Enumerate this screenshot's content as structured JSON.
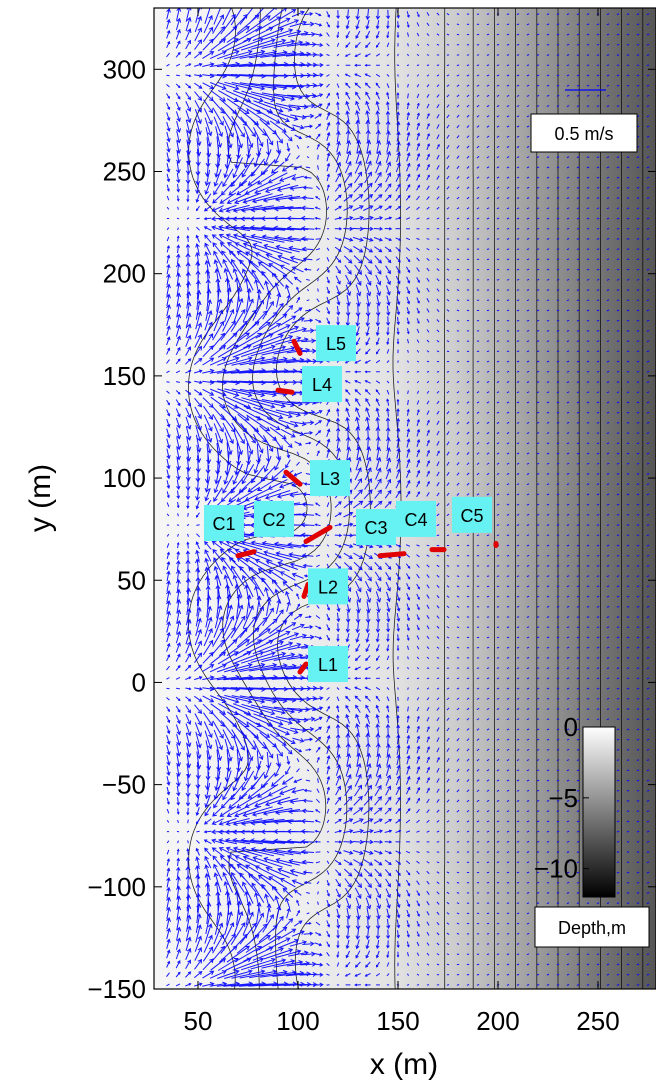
{
  "chart_data": {
    "type": "vector-field-over-contour",
    "title": "",
    "xlabel": "x (m)",
    "ylabel": "y (m)",
    "xlim": [
      28,
      279
    ],
    "ylim": [
      -150,
      330
    ],
    "x_ticks": [
      50,
      100,
      150,
      200,
      250
    ],
    "x_tick_labels": [
      "50",
      "100",
      "150",
      "200",
      "250"
    ],
    "y_ticks": [
      -150,
      -100,
      -50,
      0,
      50,
      100,
      150,
      200,
      250,
      300
    ],
    "y_tick_labels": [
      "−150",
      "−100",
      "−50",
      "0",
      "50",
      "100",
      "150",
      "200",
      "250",
      "300"
    ],
    "grid": false,
    "background": {
      "quantity": "Depth,m",
      "colormap": "gray",
      "clim": [
        -12,
        0
      ],
      "contour_interval": 1
    },
    "colorbar": {
      "label": "Depth,m",
      "ticks": [
        0,
        -5,
        -10
      ],
      "tick_labels": [
        "0",
        "−5",
        "−10"
      ]
    },
    "vectors": {
      "color": "#0000ff",
      "scale_label": "0.5 m/s",
      "scale_value_mps": 0.5,
      "grid_spacing_m": 5
    },
    "instruments": {
      "color": "#e00000",
      "stations": [
        {
          "label": "L1",
          "x": 104,
          "y": 9,
          "tail_dx": -3,
          "tail_dy": -4
        },
        {
          "label": "L2",
          "x": 105,
          "y": 48,
          "tail_dx": -2,
          "tail_dy": -6
        },
        {
          "label": "L3",
          "x": 101,
          "y": 97,
          "tail_dx": -7,
          "tail_dy": 6
        },
        {
          "label": "L4",
          "x": 97,
          "y": 142,
          "tail_dx": -7,
          "tail_dy": 1
        },
        {
          "label": "L5",
          "x": 101,
          "y": 161,
          "tail_dx": -3,
          "tail_dy": 6
        },
        {
          "label": "C1",
          "x": 78,
          "y": 64,
          "tail_dx": -8,
          "tail_dy": -2
        },
        {
          "label": "C2",
          "x": 104,
          "y": 69,
          "tail_dx": 12,
          "tail_dy": 7
        },
        {
          "label": "C3",
          "x": 153,
          "y": 63,
          "tail_dx": -12,
          "tail_dy": -1
        },
        {
          "label": "C4",
          "x": 167,
          "y": 65,
          "tail_dx": 6,
          "tail_dy": 0
        },
        {
          "label": "C5",
          "x": 199,
          "y": 67,
          "tail_dx": 0,
          "tail_dy": 1
        }
      ]
    },
    "labels": {
      "L1": {
        "text": "L1",
        "x": 114,
        "y": 9
      },
      "L2": {
        "text": "L2",
        "x": 114,
        "y": 47
      },
      "L3": {
        "text": "L3",
        "x": 115,
        "y": 100
      },
      "L4": {
        "text": "L4",
        "x": 111,
        "y": 146
      },
      "L5": {
        "text": "L5",
        "x": 118,
        "y": 166
      },
      "C1": {
        "text": "C1",
        "x": 62,
        "y": 78
      },
      "C2": {
        "text": "C2",
        "x": 87,
        "y": 80
      },
      "C3": {
        "text": "C3",
        "x": 138,
        "y": 76
      },
      "C4": {
        "text": "C4",
        "x": 158,
        "y": 80
      },
      "C5": {
        "text": "C5",
        "x": 186,
        "y": 82
      }
    }
  }
}
